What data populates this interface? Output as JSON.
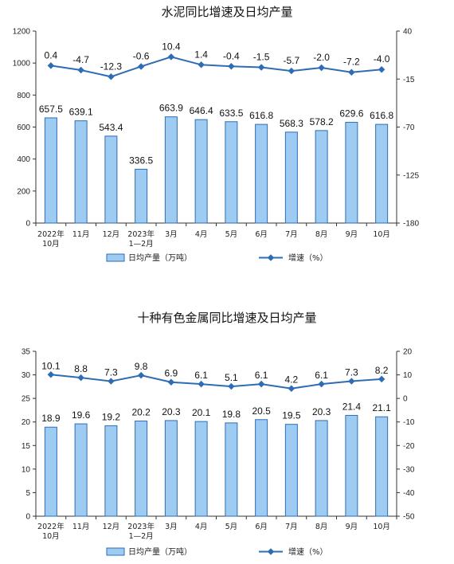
{
  "chart_data": [
    {
      "type": "bar",
      "title": "水泥同比增速及日均产量",
      "categories": [
        "2022年\n10月",
        "11月",
        "12月",
        "2023年\n1—2月",
        "3月",
        "4月",
        "5月",
        "6月",
        "7月",
        "8月",
        "9月",
        "10月"
      ],
      "series": [
        {
          "name": "日均产量（万吨）",
          "type": "bar",
          "axis": "left",
          "values": [
            657.5,
            639.1,
            543.4,
            336.5,
            663.9,
            646.4,
            633.5,
            616.8,
            568.3,
            578.2,
            629.6,
            616.8
          ]
        },
        {
          "name": "增速（%）",
          "type": "line",
          "axis": "right",
          "values": [
            0.4,
            -4.7,
            -12.3,
            -0.6,
            10.4,
            1.4,
            -0.4,
            -1.5,
            -5.7,
            -2.0,
            -7.2,
            -4.0
          ]
        }
      ],
      "left_axis": {
        "min": 0,
        "max": 1200,
        "ticks": [
          0,
          200,
          400,
          600,
          800,
          1000,
          1200
        ]
      },
      "right_axis": {
        "min": -180,
        "max": 40,
        "ticks": [
          40,
          -15,
          -70,
          -125,
          -180
        ]
      },
      "line_labels": [
        "0.4",
        "-4.7",
        "-12.3",
        "-0.6",
        "10.4",
        "1.4",
        "-0.4",
        "-1.5",
        "-5.7",
        "-2.0",
        "-7.2",
        "-4.0"
      ],
      "bar_labels": [
        "657.5",
        "639.1",
        "543.4",
        "336.5",
        "663.9",
        "646.4",
        "633.5",
        "616.8",
        "568.3",
        "578.2",
        "629.6",
        "616.8"
      ],
      "legend_position": "bottom",
      "grid": false
    },
    {
      "type": "bar",
      "title": "十种有色金属同比增速及日均产量",
      "categories": [
        "2022年\n10月",
        "11月",
        "12月",
        "2023年\n1—2月",
        "3月",
        "4月",
        "5月",
        "6月",
        "7月",
        "8月",
        "9月",
        "10月"
      ],
      "series": [
        {
          "name": "日均产量（万吨）",
          "type": "bar",
          "axis": "left",
          "values": [
            18.9,
            19.6,
            19.2,
            20.2,
            20.3,
            20.1,
            19.8,
            20.5,
            19.5,
            20.3,
            21.4,
            21.1
          ]
        },
        {
          "name": "增速（%）",
          "type": "line",
          "axis": "right",
          "values": [
            10.1,
            8.8,
            7.3,
            9.8,
            6.9,
            6.1,
            5.1,
            6.1,
            4.2,
            6.1,
            7.3,
            8.2
          ]
        }
      ],
      "left_axis": {
        "min": 0,
        "max": 35,
        "ticks": [
          0,
          5,
          10,
          15,
          20,
          25,
          30,
          35
        ]
      },
      "right_axis": {
        "min": -50,
        "max": 20,
        "ticks": [
          20,
          10,
          0,
          -10,
          -20,
          -30,
          -40,
          -50
        ]
      },
      "line_labels": [
        "10.1",
        "8.8",
        "7.3",
        "9.8",
        "6.9",
        "6.1",
        "5.1",
        "6.1",
        "4.2",
        "6.1",
        "7.3",
        "8.2"
      ],
      "bar_labels": [
        "18.9",
        "19.6",
        "19.2",
        "20.2",
        "20.3",
        "20.1",
        "19.8",
        "20.5",
        "19.5",
        "20.3",
        "21.4",
        "21.1"
      ],
      "legend_position": "bottom",
      "grid": false
    }
  ],
  "colors": {
    "bar_fill": "#9ecbf2",
    "bar_stroke": "#2f6db5",
    "line": "#2e6db4"
  }
}
